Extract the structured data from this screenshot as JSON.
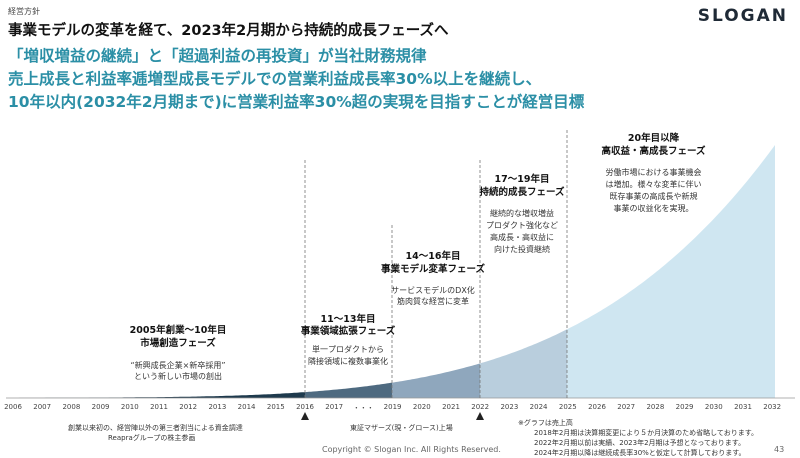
{
  "header": {
    "section_label": "経営方針",
    "logo": "SLOGAN",
    "headline": "事業モデルの変革を経て、2023年2月期から持続的成長フェーズへ"
  },
  "policy": {
    "line1": "「増収増益の継続」と「超過利益の再投資」が当社財務規律",
    "line2": "売上成長と利益率逓増型成長モデルでの営業利益成長率30%以上を継続し、",
    "line3": "10年以内(2032年2月期まで)に営業利益率30%超の実現を目指すことが経営目標"
  },
  "phases": [
    {
      "title1": "2005年創業〜10年目",
      "title2": "市場創造フェーズ",
      "desc": [
        "“新興成長企業×新卒採用”",
        "という新しい市場の創出"
      ]
    },
    {
      "title1": "11〜13年目",
      "title2": "事業領域拡張フェーズ",
      "desc": [
        "単一プロダクトから",
        "隣接領域に複数事業化"
      ]
    },
    {
      "title1": "14〜16年目",
      "title2": "事業モデル変革フェーズ",
      "desc": [
        "サービスモデルのDX化",
        "筋肉質な経営に変革"
      ]
    },
    {
      "title1": "17〜19年目",
      "title2": "持続的成長フェーズ",
      "desc": [
        "継続的な増収増益",
        "プロダクト強化など",
        "高成長・高収益に",
        "向けた投資継続"
      ]
    },
    {
      "title1": "20年目以降",
      "title2": "高収益・高成長フェーズ",
      "desc": [
        "労働市場における事業機会",
        "は増加。様々な変革に伴い",
        "既存事業の高成長や新規",
        "事業の収益化を実現。"
      ]
    }
  ],
  "axis_labels": [
    "2006",
    "2007",
    "2008",
    "2009",
    "2010",
    "2011",
    "2012",
    "2013",
    "2014",
    "2015",
    "2016",
    "2017",
    "・・・",
    "2019",
    "2020",
    "2021",
    "2022",
    "2023",
    "2024",
    "2025",
    "2026",
    "2027",
    "2028",
    "2029",
    "2030",
    "2031",
    "2032"
  ],
  "annotations": {
    "a2016_line1": "創業以来初の、経営陣以外の第三者割当による資金調達",
    "a2016_line2": "Reapraグループの株主参画",
    "a2022": "東証マザーズ(現・グロース)上場"
  },
  "notes": [
    "※グラフは売上高",
    "2018年2月期は決算期変更により５か月決算のため省略しております。",
    "2022年2月期以前は実績、2023年2月期は予想となっております。",
    "2024年2月期以降は継続成長率30%と仮定して計算しております。"
  ],
  "footer": {
    "copyright": "Copyright © Slogan Inc. All Rights Reserved.",
    "page_number": "43"
  },
  "colors": {
    "accent": "#2b8fa6",
    "phase1": "#1e3a4d",
    "phase2": "#4e6a80",
    "phase3": "#8fa7bd",
    "phase4": "#b9cedd",
    "phase5": "#cfe6f1"
  }
}
